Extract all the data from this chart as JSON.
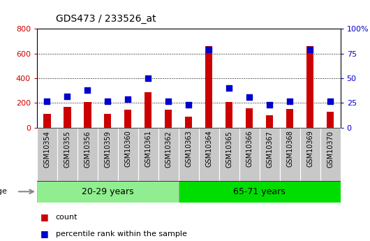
{
  "title": "GDS473 / 233526_at",
  "samples": [
    "GSM10354",
    "GSM10355",
    "GSM10356",
    "GSM10359",
    "GSM10360",
    "GSM10361",
    "GSM10362",
    "GSM10363",
    "GSM10364",
    "GSM10365",
    "GSM10366",
    "GSM10367",
    "GSM10368",
    "GSM10369",
    "GSM10370"
  ],
  "counts": [
    110,
    170,
    210,
    110,
    145,
    290,
    145,
    90,
    660,
    210,
    160,
    100,
    150,
    660,
    130
  ],
  "percentiles": [
    27,
    32,
    38,
    27,
    29,
    50,
    27,
    23,
    79,
    40,
    31,
    23,
    27,
    79,
    27
  ],
  "group1_label": "20-29 years",
  "group2_label": "65-71 years",
  "group1_count": 7,
  "group2_count": 8,
  "bar_color": "#cc0000",
  "dot_color": "#0000cc",
  "ylim_left": [
    0,
    800
  ],
  "ylim_right": [
    0,
    100
  ],
  "yticks_left": [
    0,
    200,
    400,
    600,
    800
  ],
  "yticks_right": [
    0,
    25,
    50,
    75,
    100
  ],
  "legend_count": "count",
  "legend_percentile": "percentile rank within the sample",
  "group1_bg": "#90ee90",
  "group2_bg": "#00dd00",
  "tick_bg": "#c8c8c8",
  "plot_bg": "#ffffff",
  "age_label": "age",
  "bar_width": 0.35,
  "dot_size": 40
}
